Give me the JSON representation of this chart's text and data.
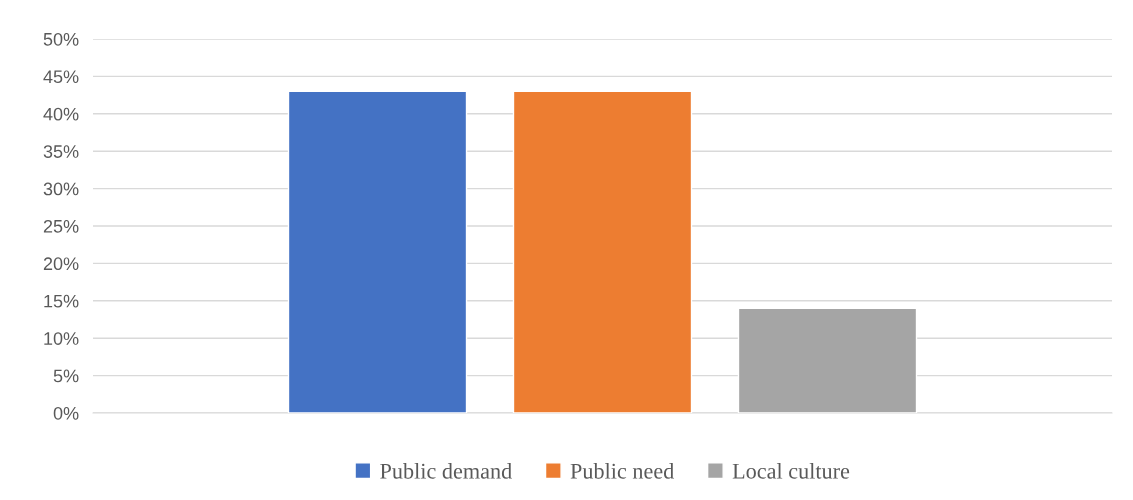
{
  "chart_data": {
    "type": "bar",
    "categories": [
      null
    ],
    "series": [
      {
        "name": "Public demand",
        "color": "#4472c4",
        "values": [
          43
        ]
      },
      {
        "name": "Public need",
        "color": "#ed7d31",
        "values": [
          43
        ]
      },
      {
        "name": "Local culture",
        "color": "#a5a5a5",
        "values": [
          14
        ]
      }
    ],
    "ylim": [
      0,
      50
    ],
    "yticks": [
      {
        "value": 0,
        "label": "0%"
      },
      {
        "value": 5,
        "label": "5%"
      },
      {
        "value": 10,
        "label": "10%"
      },
      {
        "value": 15,
        "label": "15%"
      },
      {
        "value": 20,
        "label": "20%"
      },
      {
        "value": 25,
        "label": "25%"
      },
      {
        "value": 30,
        "label": "30%"
      },
      {
        "value": 35,
        "label": "35%"
      },
      {
        "value": 40,
        "label": "40%"
      },
      {
        "value": 45,
        "label": "45%"
      },
      {
        "value": 50,
        "label": "50%"
      }
    ],
    "grid": "y",
    "legend": "bottom"
  }
}
